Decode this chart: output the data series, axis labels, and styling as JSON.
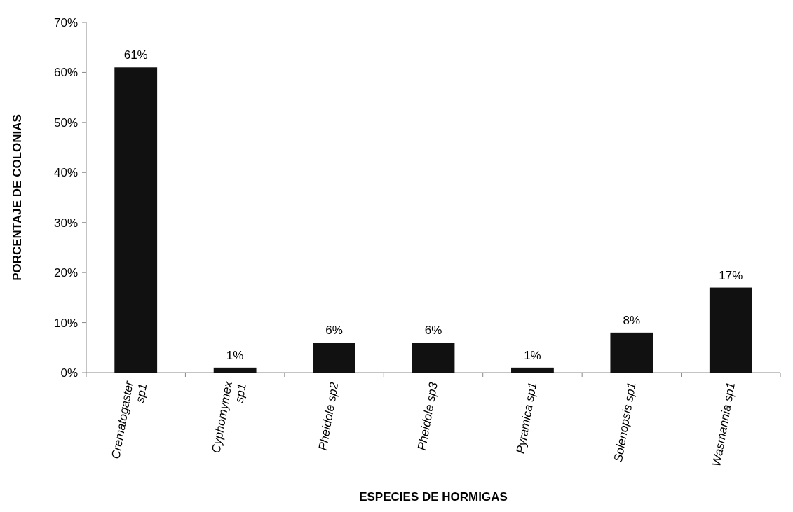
{
  "chart_data": {
    "type": "bar",
    "xlabel": "ESPECIES DE HORMIGAS",
    "ylabel": "PORCENTAJE DE COLONIAS",
    "categories": [
      "Crematogaster\nsp1",
      "Cyphomymex\nsp1",
      "Pheidole sp2",
      "Pheidole sp3",
      "Pyramica sp1",
      "Solenopsis sp1",
      "Wasmannia sp1"
    ],
    "values": [
      61,
      1,
      6,
      6,
      1,
      8,
      17
    ],
    "value_labels": [
      "61%",
      "1%",
      "6%",
      "6%",
      "1%",
      "8%",
      "17%"
    ],
    "color": "#111111",
    "ylim": [
      0,
      70
    ],
    "yticks": [
      {
        "value": 0,
        "label": "0%"
      },
      {
        "value": 10,
        "label": "10%"
      },
      {
        "value": 20,
        "label": "20%"
      },
      {
        "value": 30,
        "label": "30%"
      },
      {
        "value": 40,
        "label": "40%"
      },
      {
        "value": 50,
        "label": "50%"
      },
      {
        "value": 60,
        "label": "60%"
      },
      {
        "value": 70,
        "label": "70%"
      }
    ]
  }
}
